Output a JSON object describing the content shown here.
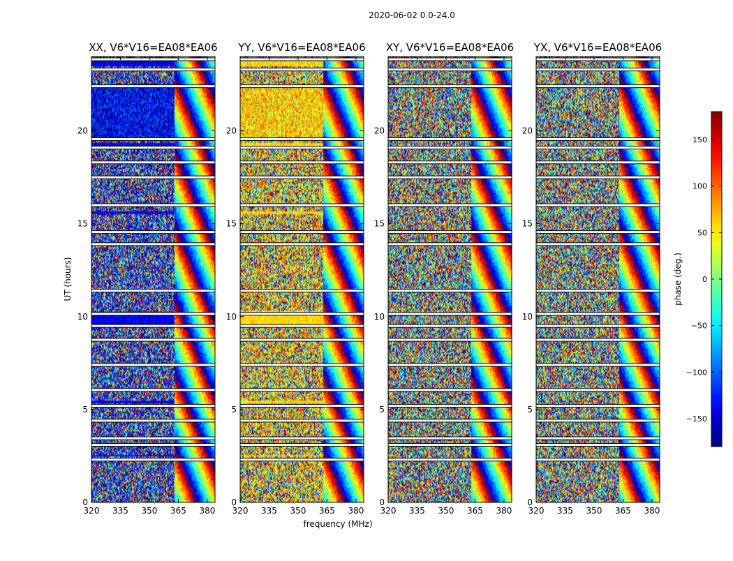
{
  "figure": {
    "title": "2020-06-02 0.0-24.0",
    "xlabel": "frequency (MHz)",
    "ylabel": "UT (hours)"
  },
  "chart_data": {
    "type": "heatmap",
    "title": "2020-06-02 0.0-24.0",
    "xlabel": "frequency (MHz)",
    "ylabel": "UT (hours)",
    "xlim": [
      320,
      384
    ],
    "ylim": [
      0,
      24
    ],
    "x_ticks": [
      320,
      335,
      350,
      365,
      380
    ],
    "y_ticks": [
      0,
      5,
      10,
      15,
      20
    ],
    "colormap": "jet",
    "colorbar": {
      "label": "phase (deg.)",
      "range": [
        -180,
        180
      ],
      "ticks": [
        -150,
        -100,
        -50,
        0,
        50,
        100,
        150
      ],
      "tick_labels": [
        "−150",
        "−100",
        "−50",
        "0",
        "50",
        "100",
        "150"
      ]
    },
    "panels": [
      {
        "title": "XX, V6*V16=EA08*EA06",
        "polarization": "XX",
        "band_phase_deg": -140
      },
      {
        "title": "YY, V6*V16=EA08*EA06",
        "polarization": "YY",
        "band_phase_deg": 60
      },
      {
        "title": "XY, V6*V16=EA08*EA06",
        "polarization": "XY",
        "band_phase_deg": 0
      },
      {
        "title": "YX, V6*V16=EA08*EA06",
        "polarization": "YX",
        "band_phase_deg": 0
      }
    ],
    "gap_rows_ut": [
      2.3,
      3.1,
      3.45,
      4.4,
      5.2,
      6.05,
      7.4,
      8.75,
      9.5,
      10.15,
      11.4,
      13.9,
      14.55,
      16.0,
      17.5,
      18.3,
      19.1,
      19.55,
      22.4,
      23.3,
      23.85
    ],
    "strong_band_ut": [
      [
        9.45,
        10.3
      ],
      [
        2.45,
        2.55
      ],
      [
        5.3,
        5.45
      ],
      [
        19.1,
        19.35
      ],
      [
        23.5,
        23.75
      ],
      [
        15.55,
        15.7
      ],
      [
        11.3,
        11.4
      ]
    ],
    "smooth_region_ut": [
      [
        19.6,
        22.5
      ]
    ],
    "grid": false
  }
}
